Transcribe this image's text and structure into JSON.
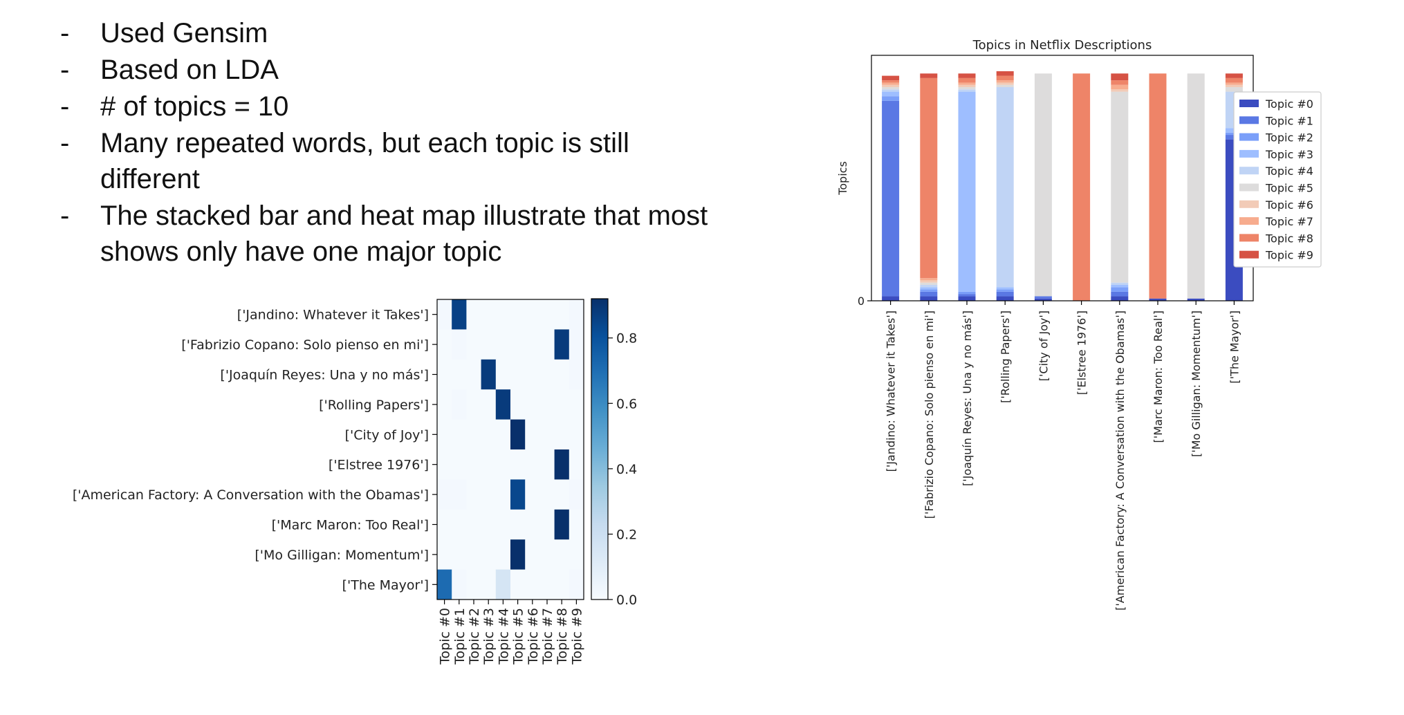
{
  "bullets": [
    "Used Gensim",
    "Based on LDA",
    "# of topics = 10",
    "Many repeated words, but each topic is still different",
    "The stacked bar and heat map illustrate that most shows only have one major topic"
  ],
  "bullet_marker": "-",
  "chart_data": [
    {
      "type": "heatmap",
      "title": "",
      "rows": [
        "['Jandino: Whatever it Takes']",
        "['Fabrizio Copano: Solo pienso en mi']",
        "['Joaquín Reyes: Una y no más']",
        "['Rolling Papers']",
        "['City of Joy']",
        "['Elstree 1976']",
        "['American Factory: A Conversation with the Obamas']",
        "['Marc Maron: Too Real']",
        "['Mo Gilligan: Momentum']",
        "['The Mayor']"
      ],
      "columns": [
        "Topic #0",
        "Topic #1",
        "Topic #2",
        "Topic #3",
        "Topic #4",
        "Topic #5",
        "Topic #6",
        "Topic #7",
        "Topic #8",
        "Topic #9"
      ],
      "values": [
        [
          0.02,
          0.86,
          0.01,
          0.01,
          0.01,
          0.01,
          0.01,
          0.01,
          0.01,
          0.02
        ],
        [
          0.01,
          0.02,
          0.01,
          0.01,
          0.01,
          0.01,
          0.01,
          0.01,
          0.88,
          0.02
        ],
        [
          0.01,
          0.01,
          0.01,
          0.88,
          0.01,
          0.01,
          0.01,
          0.01,
          0.01,
          0.02
        ],
        [
          0.01,
          0.02,
          0.01,
          0.01,
          0.88,
          0.01,
          0.01,
          0.01,
          0.01,
          0.01
        ],
        [
          0.01,
          0.01,
          0.01,
          0.01,
          0.01,
          0.92,
          0.01,
          0.01,
          0.01,
          0.01
        ],
        [
          0.01,
          0.01,
          0.01,
          0.01,
          0.01,
          0.01,
          0.01,
          0.01,
          0.92,
          0.01
        ],
        [
          0.02,
          0.02,
          0.01,
          0.01,
          0.01,
          0.84,
          0.01,
          0.01,
          0.01,
          0.02
        ],
        [
          0.01,
          0.01,
          0.01,
          0.01,
          0.01,
          0.01,
          0.01,
          0.01,
          0.92,
          0.01
        ],
        [
          0.01,
          0.01,
          0.01,
          0.01,
          0.01,
          0.92,
          0.01,
          0.01,
          0.01,
          0.01
        ],
        [
          0.71,
          0.02,
          0.01,
          0.01,
          0.16,
          0.01,
          0.01,
          0.01,
          0.01,
          0.02
        ]
      ],
      "colorbar": {
        "ticks": [
          "0.0",
          "0.2",
          "0.4",
          "0.6",
          "0.8"
        ],
        "tick_values": [
          0,
          0.2,
          0.4,
          0.6,
          0.8
        ],
        "vmin": 0,
        "vmax": 0.92
      },
      "colormap": "Blues"
    },
    {
      "type": "bar",
      "stacked": true,
      "title": "Topics in Netflix Descriptions",
      "xlabel": "",
      "ylabel": "Topics",
      "yticks": [
        "0"
      ],
      "categories": [
        "['Jandino: Whatever it Takes']",
        "['Fabrizio Copano: Solo pienso en mi']",
        "['Joaquín Reyes: Una y no más']",
        "['Rolling Papers']",
        "['City of Joy']",
        "['Elstree 1976']",
        "['American Factory: A Conversation with the Obamas']",
        "['Marc Maron: Too Real']",
        "['Mo Gilligan: Momentum']",
        "['The Mayor']"
      ],
      "ylim": [
        0,
        1.08
      ],
      "legend_position": "right",
      "series": [
        {
          "name": "Topic #0",
          "color": "#3b4cc0",
          "values": [
            0.02,
            0.02,
            0.02,
            0.02,
            0.01,
            0.0,
            0.02,
            0.01,
            0.01,
            0.71
          ]
        },
        {
          "name": "Topic #1",
          "color": "#5a78e4",
          "values": [
            0.86,
            0.02,
            0.01,
            0.02,
            0.01,
            0.0,
            0.02,
            0.0,
            0.0,
            0.02
          ]
        },
        {
          "name": "Topic #2",
          "color": "#7b9ff9",
          "values": [
            0.02,
            0.01,
            0.01,
            0.01,
            0.0,
            0.0,
            0.02,
            0.0,
            0.0,
            0.01
          ]
        },
        {
          "name": "Topic #3",
          "color": "#9ebeff",
          "values": [
            0.02,
            0.01,
            0.88,
            0.01,
            0.0,
            0.0,
            0.01,
            0.0,
            0.0,
            0.02
          ]
        },
        {
          "name": "Topic #4",
          "color": "#c0d4f5",
          "values": [
            0.01,
            0.01,
            0.01,
            0.88,
            0.0,
            0.0,
            0.01,
            0.0,
            0.0,
            0.16
          ]
        },
        {
          "name": "Topic #5",
          "color": "#dddcdc",
          "values": [
            0.01,
            0.01,
            0.01,
            0.01,
            0.98,
            0.0,
            0.84,
            0.0,
            0.99,
            0.02
          ]
        },
        {
          "name": "Topic #6",
          "color": "#f2cbb7",
          "values": [
            0.01,
            0.01,
            0.01,
            0.01,
            0.0,
            0.0,
            0.01,
            0.0,
            0.0,
            0.01
          ]
        },
        {
          "name": "Topic #7",
          "color": "#f7ac8e",
          "values": [
            0.01,
            0.01,
            0.01,
            0.01,
            0.0,
            0.0,
            0.02,
            0.0,
            0.0,
            0.01
          ]
        },
        {
          "name": "Topic #8",
          "color": "#ee8468",
          "values": [
            0.01,
            0.88,
            0.02,
            0.02,
            0.0,
            1.0,
            0.02,
            0.99,
            0.0,
            0.02
          ]
        },
        {
          "name": "Topic #9",
          "color": "#d65244",
          "values": [
            0.02,
            0.02,
            0.02,
            0.02,
            0.0,
            0.0,
            0.03,
            0.0,
            0.0,
            0.02
          ]
        }
      ]
    }
  ]
}
